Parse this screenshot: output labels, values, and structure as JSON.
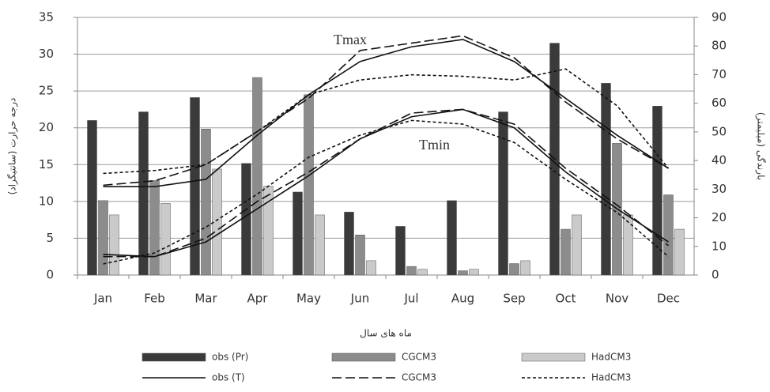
{
  "chart_data": {
    "type": "bar_line",
    "x_label": "ماه های سال",
    "y_label": "درجه حرارت (سانتیگراد)",
    "y2_label": "بارندگی (میلیمتر)",
    "annotations": [
      "Tmax",
      "Tmin"
    ],
    "categories": [
      "Jan",
      "Feb",
      "Mar",
      "Apr",
      "May",
      "Jun",
      "Jul",
      "Aug",
      "Sep",
      "Oct",
      "Nov",
      "Dec"
    ],
    "ylim": [
      0,
      35
    ],
    "yticks": [
      0,
      5,
      10,
      15,
      20,
      25,
      30,
      35
    ],
    "y2lim": [
      0,
      90
    ],
    "y2ticks": [
      0,
      10,
      20,
      30,
      40,
      50,
      60,
      70,
      80,
      90
    ],
    "grid": true,
    "series": [
      {
        "name": "obs (Pr)",
        "kind": "bar",
        "axis": "y2",
        "color": "#3a3a3a",
        "values": [
          54,
          57,
          62,
          39,
          29,
          22,
          17,
          26,
          57,
          81,
          67,
          59
        ]
      },
      {
        "name": "CGCM3",
        "kind": "bar",
        "axis": "y2",
        "color": "#8c8c8c",
        "values": [
          26,
          33,
          51,
          69,
          63,
          14,
          3,
          1.5,
          4,
          16,
          46,
          28
        ]
      },
      {
        "name": "HadCM3",
        "kind": "bar",
        "axis": "y2",
        "color": "#cacaca",
        "values": [
          21,
          25,
          37,
          31,
          21,
          5,
          2,
          2,
          5,
          21,
          21,
          16
        ]
      },
      {
        "name": "obs (T)",
        "kind": "line",
        "dash": "solid",
        "color": "#111111",
        "values": [
          12,
          12,
          13,
          19,
          24.5,
          29,
          31,
          32,
          29,
          24,
          19,
          14.5
        ]
      },
      {
        "name": "CGCM3",
        "kind": "line",
        "dash": "long",
        "color": "#111111",
        "values": [
          12.2,
          12.8,
          15,
          19.5,
          24,
          30.5,
          31.5,
          32.5,
          29.5,
          23.5,
          18.5,
          14.5
        ]
      },
      {
        "name": "HadCM3",
        "kind": "line",
        "dash": "short",
        "color": "#111111",
        "values": [
          13.8,
          14.2,
          15,
          19.5,
          24.5,
          26.5,
          27.2,
          27,
          26.5,
          28,
          23,
          14.5
        ]
      },
      {
        "name": "obs (T)",
        "kind": "line",
        "dash": "solid",
        "color": "#111111",
        "values": [
          2.8,
          2.5,
          4.5,
          9,
          13.5,
          18.5,
          21.5,
          22.5,
          20,
          14,
          9,
          4.5
        ]
      },
      {
        "name": "CGCM3",
        "kind": "line",
        "dash": "long",
        "color": "#111111",
        "values": [
          2.5,
          2.5,
          5,
          10,
          14,
          18.5,
          22,
          22.5,
          20.5,
          14.5,
          9.5,
          4
        ]
      },
      {
        "name": "HadCM3",
        "kind": "line",
        "dash": "short",
        "color": "#111111",
        "values": [
          1.5,
          3,
          6.5,
          11,
          16,
          19,
          21,
          20.5,
          18,
          13,
          8.5,
          2.5
        ]
      }
    ]
  }
}
